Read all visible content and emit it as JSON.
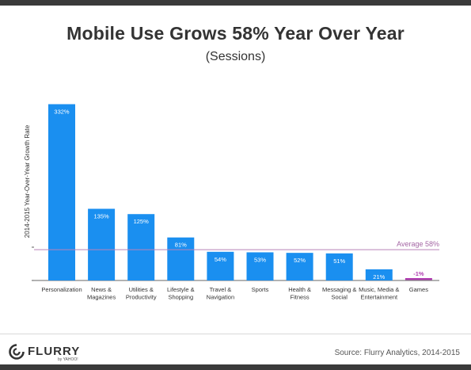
{
  "header": {
    "title": "Mobile Use Grows 58% Year Over Year",
    "subtitle": "(Sessions)"
  },
  "chart_data": {
    "type": "bar",
    "ylabel": "2014-2015 Year-Over-Year Growth Rate",
    "categories": [
      [
        "Personalization"
      ],
      [
        "News &",
        "Magazines"
      ],
      [
        "Utilities &",
        "Productivity"
      ],
      [
        "Lifestyle &",
        "Shopping"
      ],
      [
        "Travel &",
        "Navigation"
      ],
      [
        "Sports"
      ],
      [
        "Health &",
        "Fitness"
      ],
      [
        "Messaging &",
        "Social"
      ],
      [
        "Music, Media &",
        "Entertainment"
      ],
      [
        "Games"
      ]
    ],
    "values": [
      332,
      135,
      125,
      81,
      54,
      53,
      52,
      51,
      21,
      -1
    ],
    "value_labels": [
      "332%",
      "135%",
      "125%",
      "81%",
      "54%",
      "53%",
      "52%",
      "51%",
      "21%",
      "-1%"
    ],
    "average": {
      "value": 58,
      "label": "Average 58%"
    },
    "ylim": [
      -1,
      340
    ],
    "grid": false,
    "colors": {
      "bar": "#1a8ff0",
      "negative_bar": "#b03bb0",
      "average_line": "#b982b9",
      "average_label": "#a466a4",
      "axis": "#333333"
    }
  },
  "footer": {
    "logo_text": "FLURRY",
    "logo_sub": "by YAHOO!",
    "source": "Source: Flurry Analytics, 2014-2015"
  }
}
